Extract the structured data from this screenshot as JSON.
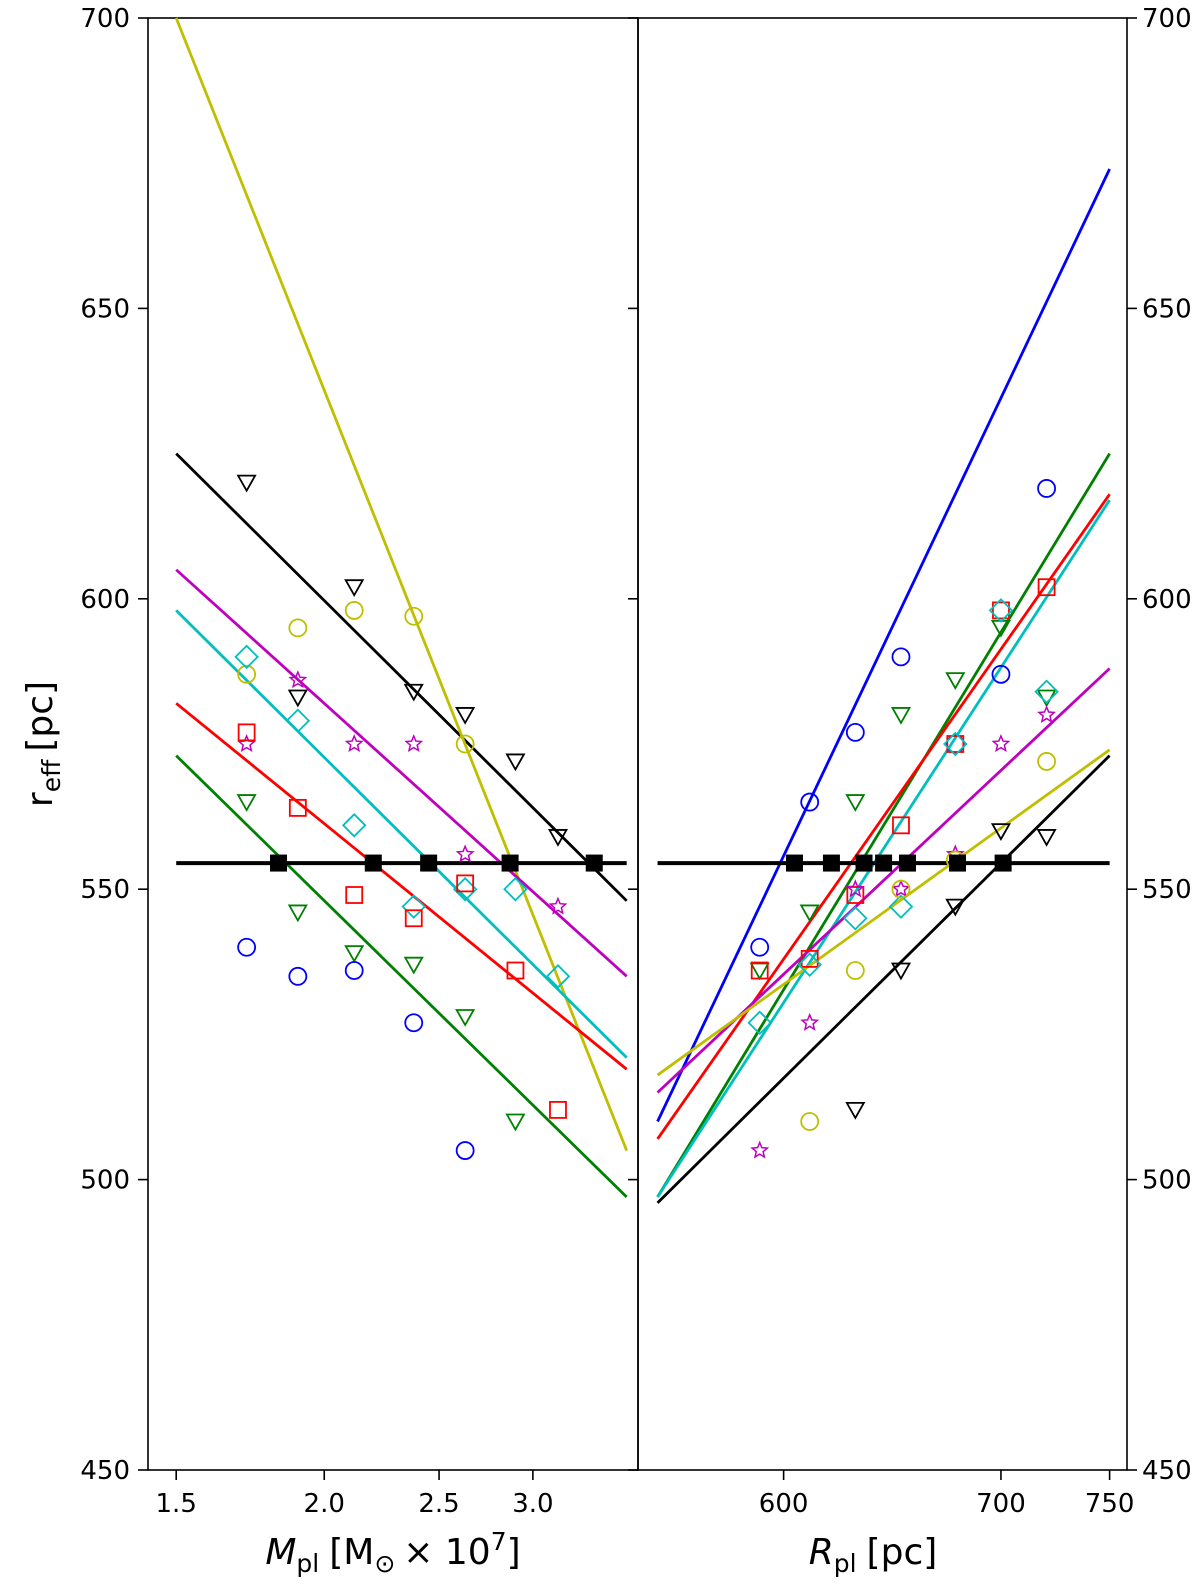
{
  "chart_data": {
    "type": "scatter",
    "ylabel": "r",
    "ylabel_sub": "eff",
    "ylabel_unit": "[pc]",
    "ylim": [
      450,
      700
    ],
    "yticks": [
      450,
      500,
      550,
      600,
      650,
      700
    ],
    "colors": {
      "black": "#000000",
      "yellow": "#bfbf00",
      "magenta": "#bf00bf",
      "cyan": "#00bfbf",
      "red": "#ff0000",
      "green": "#008000",
      "blue": "#0000ff"
    },
    "panels": [
      {
        "name": "left",
        "xlabel_main": "M",
        "xlabel_sub": "pl",
        "xlabel_unit": "[M",
        "xlabel_sun": "⊙",
        "xlabel_times": "× 10",
        "xlabel_exp": "7",
        "xlabel_close": "]",
        "xscale": "log",
        "xlim": [
          1.42,
          3.68
        ],
        "xticks": [
          1.5,
          2.0,
          2.5,
          3.0
        ],
        "xtick_labels": [
          "1.5",
          "2.0",
          "2.5",
          "3.0"
        ],
        "lines": [
          {
            "color": "black",
            "x": [
              1.5,
              3.6
            ],
            "y": [
              625,
              548
            ]
          },
          {
            "color": "yellow",
            "x": [
              1.5,
              3.6
            ],
            "y": [
              700,
              505
            ]
          },
          {
            "color": "magenta",
            "x": [
              1.5,
              3.6
            ],
            "y": [
              605,
              535
            ]
          },
          {
            "color": "cyan",
            "x": [
              1.5,
              3.6
            ],
            "y": [
              598,
              521
            ]
          },
          {
            "color": "red",
            "x": [
              1.5,
              3.6
            ],
            "y": [
              582,
              519
            ]
          },
          {
            "color": "green",
            "x": [
              1.5,
              3.6
            ],
            "y": [
              573,
              497
            ]
          }
        ],
        "hline": {
          "y": 554.5,
          "x": [
            1.5,
            3.6
          ]
        },
        "hline_points": [
          1.83,
          2.2,
          2.45,
          2.87,
          3.38
        ],
        "points": [
          {
            "color": "black",
            "marker": "triangle-down",
            "x": [
              1.72,
              2.12,
              2.38,
              2.63,
              2.9,
              3.15
            ],
            "y": [
              620,
              602,
              584,
              580,
              572,
              559
            ]
          },
          {
            "color": "black",
            "marker": "triangle-down",
            "x": [
              1.9
            ],
            "y": [
              583
            ]
          },
          {
            "color": "yellow",
            "marker": "circle",
            "x": [
              1.72,
              1.9,
              2.12,
              2.38,
              2.63
            ],
            "y": [
              587,
              595,
              598,
              597,
              575
            ]
          },
          {
            "color": "magenta",
            "marker": "star",
            "x": [
              1.72,
              1.9,
              2.12,
              2.38,
              2.63,
              3.15
            ],
            "y": [
              575,
              586,
              575,
              575,
              556,
              547
            ]
          },
          {
            "color": "cyan",
            "marker": "diamond",
            "x": [
              1.72,
              1.9,
              2.12,
              2.38,
              2.63,
              2.9,
              3.15
            ],
            "y": [
              590,
              579,
              561,
              547,
              550,
              550,
              535
            ]
          },
          {
            "color": "red",
            "marker": "square",
            "x": [
              1.72,
              1.9,
              2.12,
              2.38,
              2.63,
              2.9,
              3.15
            ],
            "y": [
              577,
              564,
              549,
              545,
              551,
              536,
              512
            ]
          },
          {
            "color": "green",
            "marker": "triangle-down",
            "x": [
              1.72,
              1.9,
              2.12,
              2.38,
              2.63,
              2.9
            ],
            "y": [
              565,
              546,
              539,
              537,
              528,
              510
            ]
          },
          {
            "color": "blue",
            "marker": "circle",
            "x": [
              1.72,
              1.9,
              2.12,
              2.38,
              2.63
            ],
            "y": [
              540,
              535,
              536,
              527,
              505
            ]
          }
        ]
      },
      {
        "name": "right",
        "xlabel_main": "R",
        "xlabel_sub": "pl",
        "xlabel_unit": "[pc]",
        "xscale": "linear",
        "xlim": [
          533,
          758
        ],
        "xticks": [
          600,
          700,
          750
        ],
        "xtick_labels": [
          "600",
          "700",
          "750"
        ],
        "lines": [
          {
            "color": "blue",
            "x": [
              542,
              750
            ],
            "y": [
              510,
              674
            ]
          },
          {
            "color": "green",
            "x": [
              542,
              750
            ],
            "y": [
              497,
              625
            ]
          },
          {
            "color": "cyan",
            "x": [
              542,
              750
            ],
            "y": [
              497,
              617
            ]
          },
          {
            "color": "red",
            "x": [
              542,
              750
            ],
            "y": [
              507,
              618
            ]
          },
          {
            "color": "magenta",
            "x": [
              542,
              750
            ],
            "y": [
              515,
              588
            ]
          },
          {
            "color": "yellow",
            "x": [
              542,
              750
            ],
            "y": [
              518,
              574
            ]
          },
          {
            "color": "black",
            "x": [
              542,
              750
            ],
            "y": [
              496,
              573
            ]
          }
        ],
        "hline": {
          "y": 554.5,
          "x": [
            542,
            750
          ]
        },
        "hline_points": [
          605,
          622,
          637,
          646,
          657,
          680,
          701
        ],
        "points": [
          {
            "color": "blue",
            "marker": "circle",
            "x": [
              589,
              612,
              633,
              654,
              679,
              700,
              721
            ],
            "y": [
              540,
              565,
              577,
              590,
              575,
              587,
              619
            ]
          },
          {
            "color": "green",
            "marker": "triangle-down",
            "x": [
              589,
              612,
              633,
              654,
              679,
              700,
              721
            ],
            "y": [
              536,
              546,
              565,
              580,
              586,
              595,
              583
            ]
          },
          {
            "color": "red",
            "marker": "square",
            "x": [
              589,
              612,
              633,
              654,
              679,
              700,
              721
            ],
            "y": [
              536,
              538,
              549,
              561,
              575,
              598,
              602
            ]
          },
          {
            "color": "cyan",
            "marker": "diamond",
            "x": [
              589,
              612,
              633,
              654,
              679,
              700,
              721
            ],
            "y": [
              527,
              537,
              545,
              547,
              575,
              598,
              584
            ]
          },
          {
            "color": "magenta",
            "marker": "star",
            "x": [
              589,
              612,
              633,
              654,
              679,
              700,
              721
            ],
            "y": [
              505,
              527,
              550,
              550,
              556,
              575,
              580
            ]
          },
          {
            "color": "yellow",
            "marker": "circle",
            "x": [
              612,
              633,
              654,
              679,
              721
            ],
            "y": [
              510,
              536,
              550,
              555,
              572
            ]
          },
          {
            "color": "black",
            "marker": "triangle-down",
            "x": [
              633,
              654,
              679,
              700,
              721
            ],
            "y": [
              512,
              536,
              547,
              560,
              559
            ]
          }
        ]
      }
    ]
  }
}
